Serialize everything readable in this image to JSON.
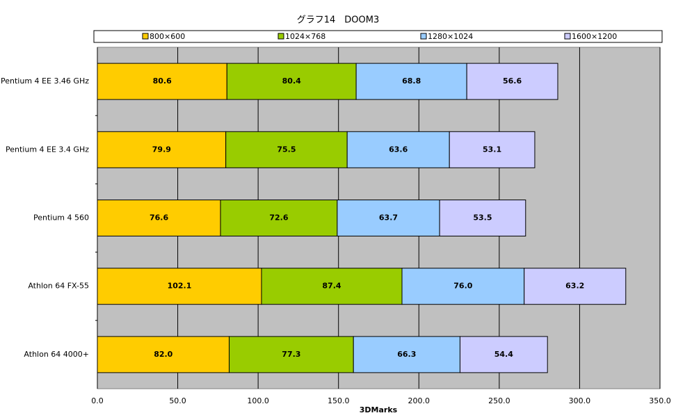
{
  "chart_data": {
    "type": "stacked-barh",
    "title": "グラフ14　DOOM3",
    "x_label": "3DMarks",
    "categories": [
      "Pentium 4 EE 3.46 GHz",
      "Pentium 4 EE 3.4 GHz",
      "Pentium 4 560",
      "Athlon 64 FX-55",
      "Athlon 64 4000+"
    ],
    "series": [
      {
        "name": "800×600",
        "color": "#ffcc00",
        "values": [
          80.6,
          79.9,
          76.6,
          102.1,
          82.0
        ],
        "value_labels": [
          "80.6",
          "79.9",
          "76.6",
          "102.1",
          "82.0"
        ]
      },
      {
        "name": "1024×768",
        "color": "#99cc00",
        "values": [
          80.4,
          75.5,
          72.6,
          87.4,
          77.3
        ],
        "value_labels": [
          "80.4",
          "75.5",
          "72.6",
          "87.4",
          "77.3"
        ]
      },
      {
        "name": "1280×1024",
        "color": "#99ccff",
        "values": [
          68.8,
          63.6,
          63.7,
          76.0,
          66.3
        ],
        "value_labels": [
          "68.8",
          "63.6",
          "63.7",
          "76.0",
          "66.3"
        ]
      },
      {
        "name": "1600×1200",
        "color": "#ccccff",
        "values": [
          56.6,
          53.1,
          53.5,
          63.2,
          54.4
        ],
        "value_labels": [
          "56.6",
          "53.1",
          "53.5",
          "63.2",
          "54.4"
        ]
      }
    ],
    "xlim": [
      0,
      350
    ],
    "xticks": [
      {
        "value": 0,
        "label": "0.0"
      },
      {
        "value": 50,
        "label": "50.0"
      },
      {
        "value": 100,
        "label": "100.0"
      },
      {
        "value": 150,
        "label": "150.0"
      },
      {
        "value": 200,
        "label": "200.0"
      },
      {
        "value": 250,
        "label": "250.0"
      },
      {
        "value": 300,
        "label": "300.0"
      },
      {
        "value": 350,
        "label": "350.0"
      }
    ],
    "grid": true,
    "legend": "top"
  }
}
